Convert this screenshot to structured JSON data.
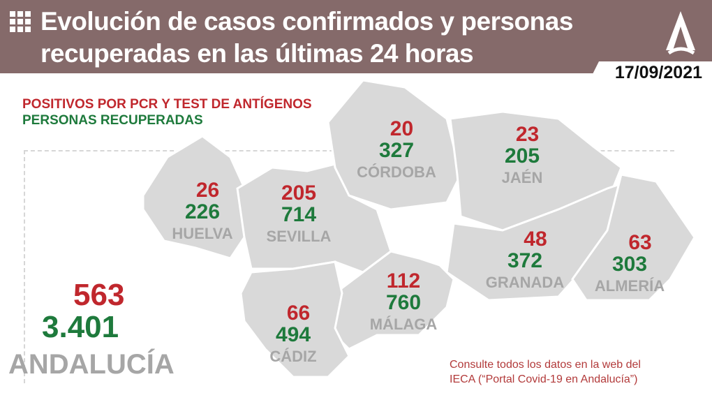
{
  "header": {
    "title_line1": "Evolución de casos confirmados y personas",
    "title_line2": "recuperadas en las últimas 24 horas",
    "date": "17/09/2021",
    "logo": "junta-de-andalucia-logo"
  },
  "legend": {
    "positives": "POSITIVOS POR PCR Y TEST DE ANTÍGENOS",
    "recovered": "PERSONAS RECUPERADAS"
  },
  "colors": {
    "header": "#856a6a",
    "positives": "#c0272d",
    "recovered": "#1e7a3c",
    "map": "#d9d9d9",
    "label": "#a6a6a6"
  },
  "provinces": [
    {
      "name": "HUELVA",
      "positives": "26",
      "recovered": "226"
    },
    {
      "name": "SEVILLA",
      "positives": "205",
      "recovered": "714"
    },
    {
      "name": "CÓRDOBA",
      "positives": "20",
      "recovered": "327"
    },
    {
      "name": "JAÉN",
      "positives": "23",
      "recovered": "205"
    },
    {
      "name": "GRANADA",
      "positives": "48",
      "recovered": "372"
    },
    {
      "name": "ALMERÍA",
      "positives": "63",
      "recovered": "303"
    },
    {
      "name": "MÁLAGA",
      "positives": "112",
      "recovered": "760"
    },
    {
      "name": "CÁDIZ",
      "positives": "66",
      "recovered": "494"
    }
  ],
  "total": {
    "name": "ANDALUCÍA",
    "positives": "563",
    "recovered": "3.401"
  },
  "note": {
    "line1": "Consulte todos los datos en la web del",
    "line2": "IECA (“Portal Covid-19 en Andalucía”)"
  }
}
